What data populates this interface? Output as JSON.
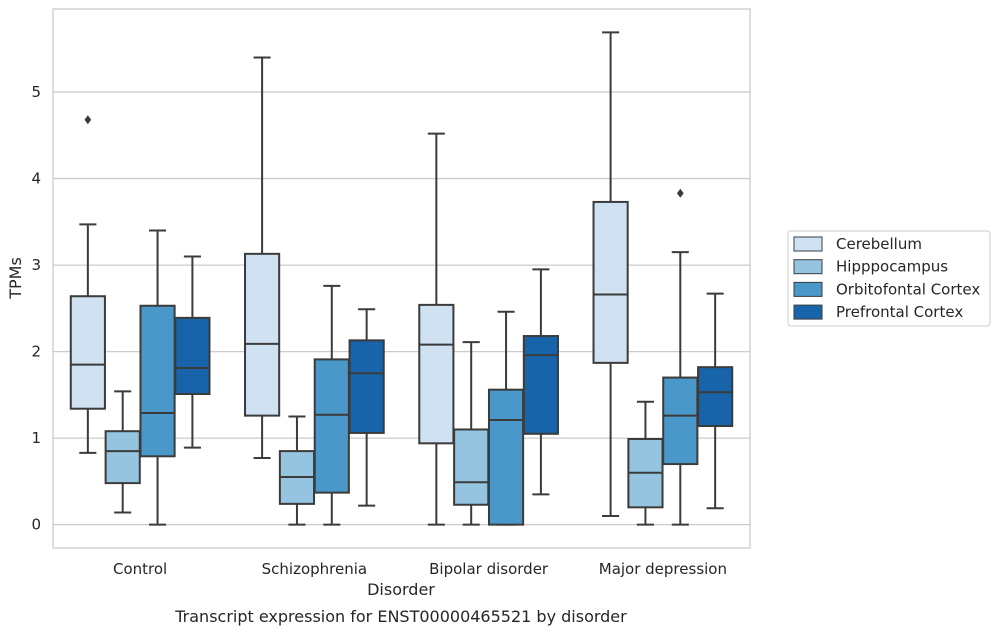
{
  "chart_data": {
    "type": "box",
    "title": "",
    "caption": "Transcript expression for ENST00000465521 by disorder",
    "xlabel": "Disorder",
    "ylabel": "TPMs",
    "ylim": [
      -0.27,
      5.96
    ],
    "yticks": [
      0,
      1,
      2,
      3,
      4,
      5
    ],
    "grid": "horizontal",
    "legend_position": "right",
    "categories": [
      "Control",
      "Schizophrenia",
      "Bipolar disorder",
      "Major depression"
    ],
    "series": [
      {
        "name": "Cerebellum",
        "color": "#d0e1f2",
        "boxes": [
          {
            "whislo": 0.83,
            "q1": 1.34,
            "med": 1.85,
            "q3": 2.64,
            "whishi": 3.47,
            "fliers": [
              4.68
            ]
          },
          {
            "whislo": 0.77,
            "q1": 1.26,
            "med": 2.09,
            "q3": 3.13,
            "whishi": 5.4,
            "fliers": []
          },
          {
            "whislo": 0.0,
            "q1": 0.94,
            "med": 2.08,
            "q3": 2.54,
            "whishi": 4.52,
            "fliers": []
          },
          {
            "whislo": 0.1,
            "q1": 1.87,
            "med": 2.66,
            "q3": 3.73,
            "whishi": 5.69,
            "fliers": []
          }
        ]
      },
      {
        "name": "Hipppocampus",
        "color": "#94c4df",
        "boxes": [
          {
            "whislo": 0.14,
            "q1": 0.48,
            "med": 0.85,
            "q3": 1.08,
            "whishi": 1.54,
            "fliers": []
          },
          {
            "whislo": 0.0,
            "q1": 0.24,
            "med": 0.55,
            "q3": 0.85,
            "whishi": 1.25,
            "fliers": []
          },
          {
            "whislo": 0.0,
            "q1": 0.23,
            "med": 0.49,
            "q3": 1.1,
            "whishi": 2.11,
            "fliers": []
          },
          {
            "whislo": 0.0,
            "q1": 0.2,
            "med": 0.6,
            "q3": 0.99,
            "whishi": 1.42,
            "fliers": []
          }
        ]
      },
      {
        "name": "Orbitofontal Cortex",
        "color": "#4a98c9",
        "boxes": [
          {
            "whislo": 0.0,
            "q1": 0.79,
            "med": 1.29,
            "q3": 2.53,
            "whishi": 3.4,
            "fliers": []
          },
          {
            "whislo": 0.0,
            "q1": 0.37,
            "med": 1.27,
            "q3": 1.91,
            "whishi": 2.76,
            "fliers": []
          },
          {
            "whislo": 0.0,
            "q1": 0.0,
            "med": 1.21,
            "q3": 1.56,
            "whishi": 2.46,
            "fliers": []
          },
          {
            "whislo": 0.0,
            "q1": 0.7,
            "med": 1.26,
            "q3": 1.7,
            "whishi": 3.15,
            "fliers": [
              3.83
            ]
          }
        ]
      },
      {
        "name": "Prefrontal Cortex",
        "color": "#1764ab",
        "boxes": [
          {
            "whislo": 0.89,
            "q1": 1.51,
            "med": 1.81,
            "q3": 2.39,
            "whishi": 3.1,
            "fliers": []
          },
          {
            "whislo": 0.22,
            "q1": 1.06,
            "med": 1.75,
            "q3": 2.13,
            "whishi": 2.49,
            "fliers": []
          },
          {
            "whislo": 0.35,
            "q1": 1.05,
            "med": 1.96,
            "q3": 2.18,
            "whishi": 2.95,
            "fliers": []
          },
          {
            "whislo": 0.19,
            "q1": 1.14,
            "med": 1.53,
            "q3": 1.82,
            "whishi": 2.67,
            "fliers": []
          }
        ]
      }
    ]
  }
}
